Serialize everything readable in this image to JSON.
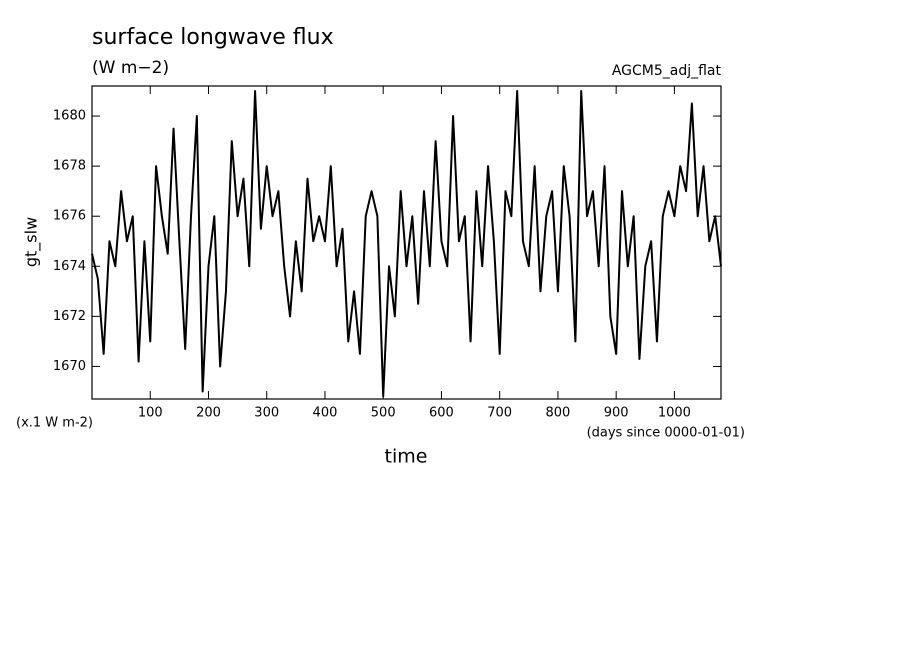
{
  "chart_data": {
    "type": "line",
    "title": "surface longwave flux",
    "subtitle": "(W m−2)",
    "annotation": "AGCM5_adj_flat",
    "ylabel": "gt_slw",
    "y_unit": "(x.1 W m-2)",
    "xlabel": "time",
    "x_unit": "(days since 0000-01-01)",
    "x": [
      0,
      10,
      20,
      30,
      40,
      50,
      60,
      70,
      80,
      90,
      100,
      110,
      120,
      130,
      140,
      150,
      160,
      170,
      180,
      190,
      200,
      210,
      220,
      230,
      240,
      250,
      260,
      270,
      280,
      290,
      300,
      310,
      320,
      330,
      340,
      350,
      360,
      370,
      380,
      390,
      400,
      410,
      420,
      430,
      440,
      450,
      460,
      470,
      480,
      490,
      500,
      510,
      520,
      530,
      540,
      550,
      560,
      570,
      580,
      590,
      600,
      610,
      620,
      630,
      640,
      650,
      660,
      670,
      680,
      690,
      700,
      710,
      720,
      730,
      740,
      750,
      760,
      770,
      780,
      790,
      800,
      810,
      820,
      830,
      840,
      850,
      860,
      870,
      880,
      890,
      900,
      910,
      920,
      930,
      940,
      950,
      960,
      970,
      980,
      990,
      1000,
      1010,
      1020,
      1030,
      1040,
      1050,
      1060,
      1070,
      1080
    ],
    "series": [
      {
        "name": "gt_slw",
        "color": "#000000",
        "values": [
          1674.5,
          1673.5,
          1670.5,
          1675,
          1674,
          1677,
          1675,
          1676,
          1670.2,
          1675,
          1671,
          1678,
          1676,
          1674.5,
          1679.5,
          1675,
          1670.7,
          1676,
          1680,
          1669,
          1674,
          1676,
          1670,
          1673,
          1679,
          1676,
          1677.5,
          1674,
          1681,
          1675.5,
          1678,
          1676,
          1677,
          1674,
          1672,
          1675,
          1673,
          1677.5,
          1675,
          1676,
          1675,
          1678,
          1674,
          1675.5,
          1671,
          1673,
          1670.5,
          1676,
          1677,
          1676,
          1668.8,
          1674,
          1672,
          1677,
          1674,
          1676,
          1672.5,
          1677,
          1674,
          1679,
          1675,
          1674,
          1680,
          1675,
          1676,
          1671,
          1677,
          1674,
          1678,
          1675,
          1670.5,
          1677,
          1676,
          1681,
          1675,
          1674,
          1678,
          1673,
          1676,
          1677,
          1673,
          1678,
          1676,
          1671,
          1681,
          1676,
          1677,
          1674,
          1678,
          1672,
          1670.5,
          1677,
          1674,
          1676,
          1670.3,
          1674,
          1675,
          1671,
          1676,
          1677,
          1676,
          1678,
          1677,
          1680.5,
          1676,
          1678,
          1675,
          1676,
          1674
        ]
      }
    ],
    "xlim": [
      0,
      1080
    ],
    "xticks": [
      100,
      200,
      300,
      400,
      500,
      600,
      700,
      800,
      900,
      1000
    ],
    "ylim": [
      1668.7,
      1681.2
    ],
    "yticks": [
      1670,
      1672,
      1674,
      1676,
      1678,
      1680
    ]
  }
}
